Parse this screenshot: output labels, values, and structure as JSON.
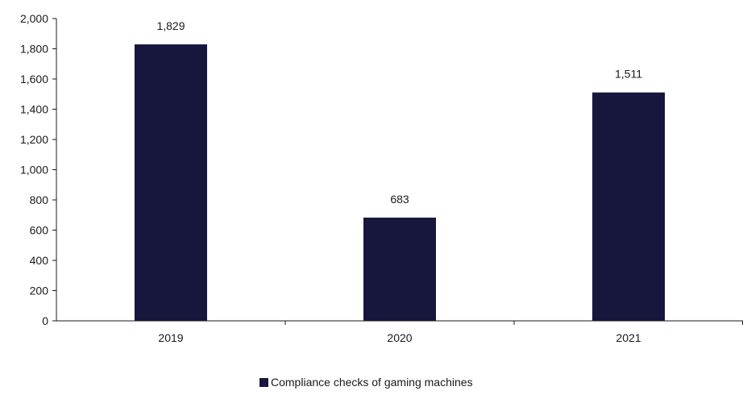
{
  "chart_data": {
    "type": "bar",
    "categories": [
      "2019",
      "2020",
      "2021"
    ],
    "series": [
      {
        "name": "Compliance checks of gaming machines",
        "values": [
          1829,
          683,
          1511
        ],
        "color": "#17163d"
      }
    ],
    "data_labels": [
      "1,829",
      "683",
      "1,511"
    ],
    "y_ticks": [
      0,
      200,
      400,
      600,
      800,
      1000,
      1200,
      1400,
      1600,
      1800,
      2000
    ],
    "y_tick_labels": [
      "0",
      "200",
      "400",
      "600",
      "800",
      "1,000",
      "1,200",
      "1,400",
      "1,600",
      "1,800",
      "2,000"
    ],
    "ylim": [
      0,
      2000
    ],
    "title": "",
    "xlabel": "",
    "ylabel": "",
    "grid": false,
    "legend_position": "bottom-center"
  }
}
